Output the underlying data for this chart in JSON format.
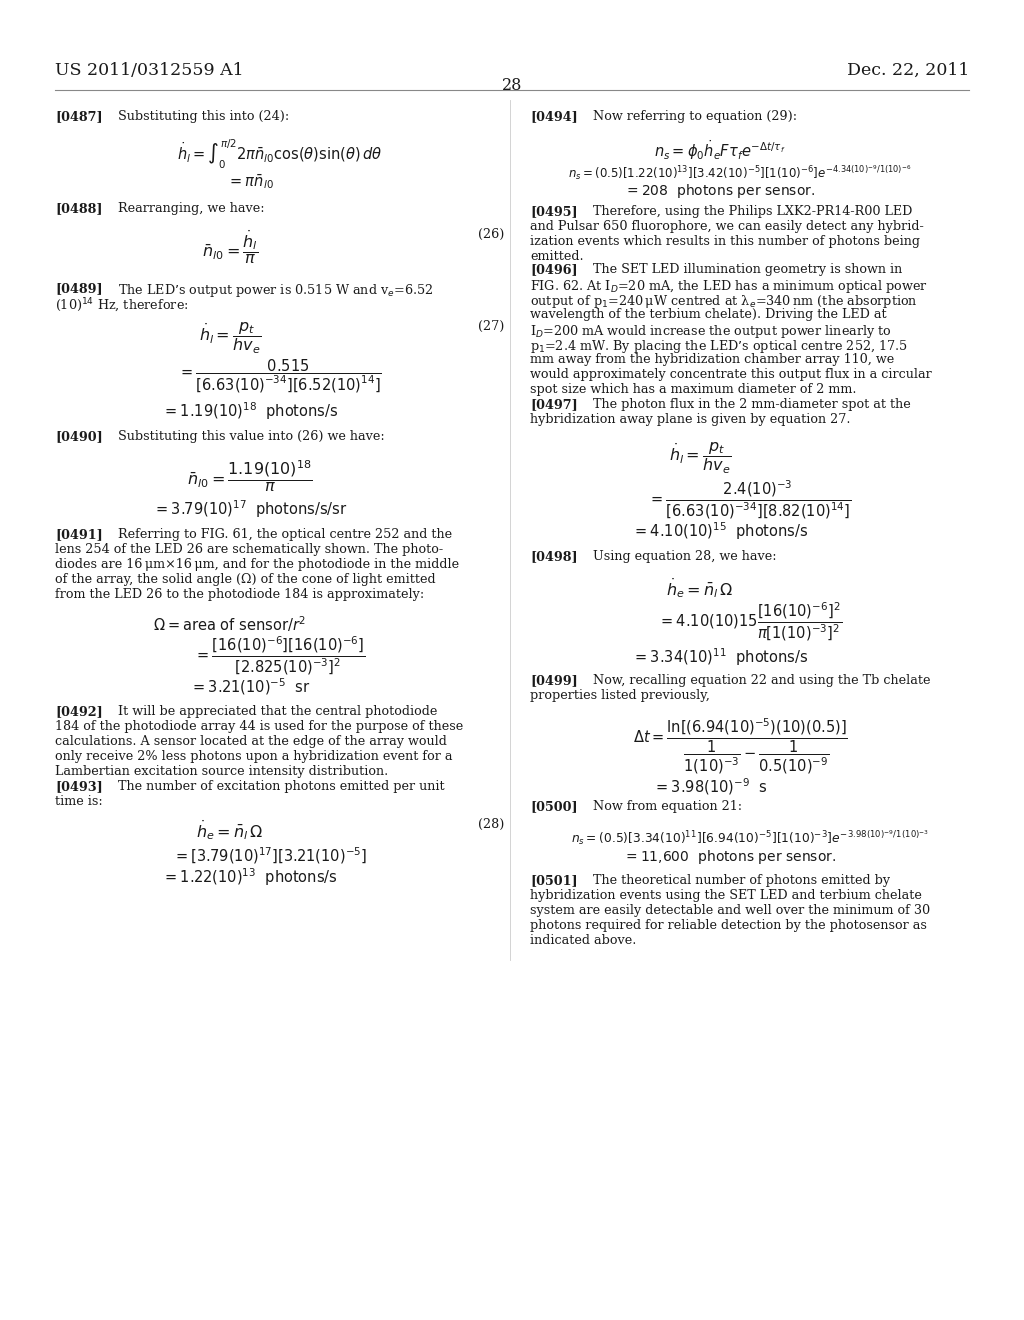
{
  "bg_color": "#ffffff",
  "text_color": "#1a1a1a",
  "header_left": "US 2011/0312559 A1",
  "header_right": "Dec. 22, 2011",
  "page_number": "28"
}
